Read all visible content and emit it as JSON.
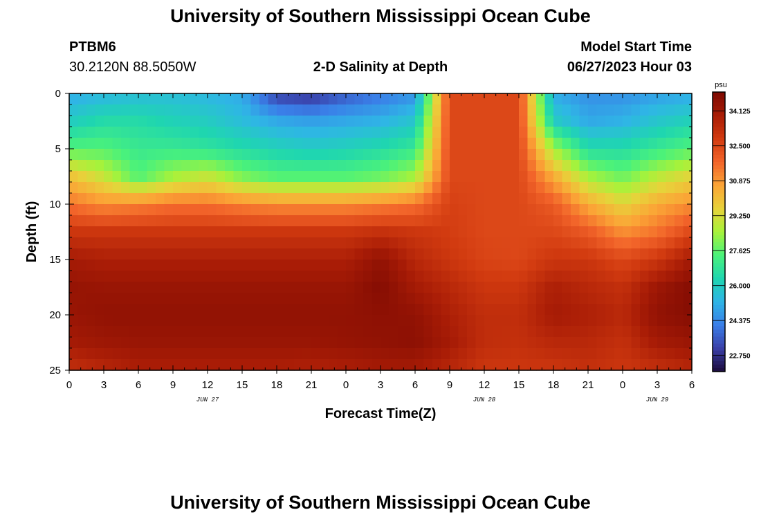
{
  "page": {
    "title_top": "University of Southern Mississippi Ocean Cube",
    "title_bottom": "University of Southern Mississippi Ocean Cube",
    "station_id": "PTBM6",
    "station_coords": "30.2120N  88.5050W",
    "plot_title": "2-D Salinity at Depth",
    "model_label": "Model Start Time",
    "model_time": "06/27/2023 Hour 03"
  },
  "chart_data": {
    "type": "heatmap",
    "title": "2-D Salinity at Depth",
    "xlabel": "Forecast Time(Z)",
    "ylabel": "Depth (ft)",
    "x_hours_range": [
      0,
      54
    ],
    "y_depth_range": [
      0,
      25
    ],
    "y_inverted": true,
    "x_tick_labels": [
      "0",
      "3",
      "6",
      "9",
      "12",
      "15",
      "18",
      "21",
      "0",
      "3",
      "6",
      "9",
      "12",
      "15",
      "18",
      "21",
      "0",
      "3",
      "6"
    ],
    "y_tick_labels": [
      "0",
      "5",
      "10",
      "15",
      "20",
      "25"
    ],
    "date_labels": [
      {
        "text": "JUN 27",
        "hour": 12
      },
      {
        "text": "JUN 28",
        "hour": 36
      },
      {
        "text": "JUN 29",
        "hour": 51
      }
    ],
    "colorbar": {
      "unit": "psu",
      "range": [
        22.0,
        35.0
      ],
      "tick_labels": [
        "34.125",
        "32.500",
        "30.875",
        "29.250",
        "27.625",
        "26.000",
        "24.375",
        "22.750"
      ],
      "tick_values": [
        34.125,
        32.5,
        30.875,
        29.25,
        27.625,
        26.0,
        24.375,
        22.75
      ],
      "colors": [
        "#1c0c3c",
        "#3a3fa8",
        "#3a7fe8",
        "#2fb5e6",
        "#1fd6b0",
        "#4bf27a",
        "#a8f23a",
        "#e8d23a",
        "#fba436",
        "#f2642a",
        "#d23b10",
        "#a81c06",
        "#7e0a02"
      ]
    },
    "series_depth_ft": [
      0,
      2.5,
      5,
      7.5,
      10,
      12.5,
      15,
      17.5,
      20,
      22.5,
      25
    ],
    "series_hours": [
      0,
      3,
      6,
      9,
      12,
      15,
      18,
      21,
      24,
      27,
      30,
      33,
      36,
      39,
      42,
      45,
      48,
      51,
      54
    ],
    "salinity_grid": [
      [
        25.0,
        25.3,
        25.5,
        25.5,
        25.3,
        25.0,
        23.0,
        22.8,
        23.5,
        24.0,
        24.5,
        32.5,
        32.5,
        32.5,
        25.0,
        24.5,
        24.5,
        24.8,
        25.0
      ],
      [
        26.0,
        26.5,
        26.5,
        26.2,
        26.0,
        25.5,
        25.0,
        24.8,
        25.0,
        25.2,
        25.8,
        32.5,
        32.5,
        32.5,
        26.0,
        25.0,
        25.2,
        25.8,
        26.2
      ],
      [
        27.5,
        27.5,
        27.0,
        27.0,
        26.8,
        26.5,
        26.2,
        26.0,
        26.2,
        26.5,
        27.0,
        32.5,
        32.5,
        32.5,
        28.5,
        26.5,
        26.5,
        27.0,
        27.5
      ],
      [
        30.0,
        29.0,
        27.5,
        28.5,
        29.0,
        28.0,
        27.5,
        27.5,
        27.5,
        27.8,
        28.5,
        32.5,
        32.5,
        32.5,
        30.5,
        28.5,
        27.8,
        28.8,
        29.5
      ],
      [
        31.5,
        31.0,
        31.2,
        31.5,
        31.5,
        31.2,
        31.0,
        31.0,
        31.0,
        31.2,
        31.5,
        32.7,
        32.5,
        32.5,
        32.0,
        30.5,
        29.5,
        30.5,
        31.0
      ],
      [
        33.0,
        33.0,
        33.0,
        33.0,
        33.0,
        33.0,
        33.0,
        33.0,
        33.0,
        33.2,
        33.0,
        32.8,
        32.5,
        32.5,
        32.5,
        32.0,
        31.0,
        31.5,
        32.5
      ],
      [
        34.0,
        33.8,
        33.8,
        33.8,
        33.8,
        33.8,
        33.8,
        33.8,
        33.8,
        34.5,
        33.5,
        33.0,
        32.6,
        32.5,
        33.0,
        33.0,
        32.5,
        33.0,
        34.0
      ],
      [
        34.4,
        34.3,
        34.3,
        34.3,
        34.3,
        34.3,
        34.3,
        34.3,
        34.3,
        34.8,
        34.0,
        33.5,
        33.0,
        33.0,
        33.8,
        33.5,
        33.2,
        34.2,
        34.8
      ],
      [
        34.3,
        34.5,
        34.5,
        34.5,
        34.5,
        34.5,
        34.5,
        34.5,
        34.5,
        34.6,
        34.5,
        33.8,
        33.3,
        33.3,
        34.0,
        33.8,
        33.5,
        34.5,
        34.8
      ],
      [
        34.0,
        34.2,
        34.3,
        34.3,
        34.3,
        34.3,
        34.3,
        34.3,
        34.4,
        34.5,
        34.6,
        34.0,
        33.3,
        33.2,
        33.5,
        33.5,
        33.2,
        34.0,
        34.3
      ],
      [
        33.2,
        33.5,
        33.8,
        33.8,
        33.8,
        33.8,
        33.8,
        33.7,
        33.8,
        34.0,
        34.0,
        33.5,
        33.0,
        33.0,
        33.0,
        33.2,
        33.0,
        33.2,
        33.5
      ]
    ]
  }
}
